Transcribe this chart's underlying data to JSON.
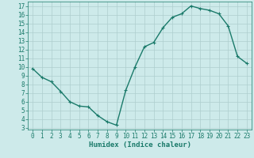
{
  "x": [
    0,
    1,
    2,
    3,
    4,
    5,
    6,
    7,
    8,
    9,
    10,
    11,
    12,
    13,
    14,
    15,
    16,
    17,
    18,
    19,
    20,
    21,
    22,
    23
  ],
  "y": [
    9.8,
    8.8,
    8.3,
    7.2,
    6.0,
    5.5,
    5.4,
    4.4,
    3.7,
    3.3,
    7.3,
    10.0,
    12.3,
    12.8,
    14.5,
    15.7,
    16.1,
    17.0,
    16.7,
    16.5,
    16.1,
    14.7,
    11.2,
    10.4
  ],
  "line_color": "#1a7a6a",
  "marker": "+",
  "xlabel": "Humidex (Indice chaleur)",
  "xlim": [
    -0.5,
    23.5
  ],
  "ylim": [
    2.8,
    17.5
  ],
  "yticks": [
    3,
    4,
    5,
    6,
    7,
    8,
    9,
    10,
    11,
    12,
    13,
    14,
    15,
    16,
    17
  ],
  "xticks": [
    0,
    1,
    2,
    3,
    4,
    5,
    6,
    7,
    8,
    9,
    10,
    11,
    12,
    13,
    14,
    15,
    16,
    17,
    18,
    19,
    20,
    21,
    22,
    23
  ],
  "bg_color": "#cdeaea",
  "grid_color": "#aecece",
  "tick_fontsize": 5.5,
  "xlabel_fontsize": 6.5,
  "linewidth": 1.0,
  "markersize": 3.5
}
